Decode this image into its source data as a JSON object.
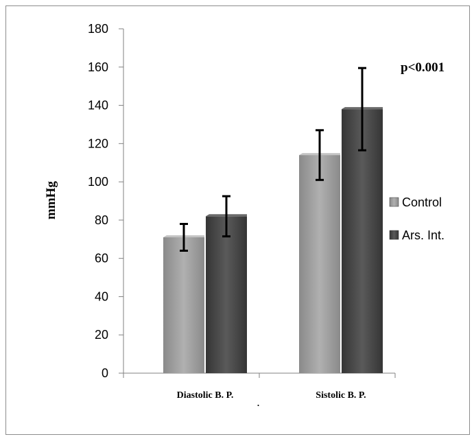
{
  "chart_data": {
    "type": "bar",
    "categories": [
      "Diastolic B. P.",
      "Sistolic B. P."
    ],
    "series": [
      {
        "name": "Control",
        "values": [
          71,
          114
        ],
        "error": [
          7,
          13
        ],
        "color": "#9e9e9e"
      },
      {
        "name": "Ars. Int.",
        "values": [
          82,
          138
        ],
        "error": [
          10.5,
          21.5
        ],
        "color": "#4a4a4a"
      }
    ],
    "ylabel": "mmHg",
    "ylim": [
      0,
      180
    ],
    "yticks": [
      "0",
      "20",
      "40",
      "60",
      "80",
      "100",
      "120",
      "140",
      "160",
      "180"
    ],
    "annotation": "p<0.001",
    "stray_mark": ".",
    "legend_position": "right",
    "grid": false
  }
}
